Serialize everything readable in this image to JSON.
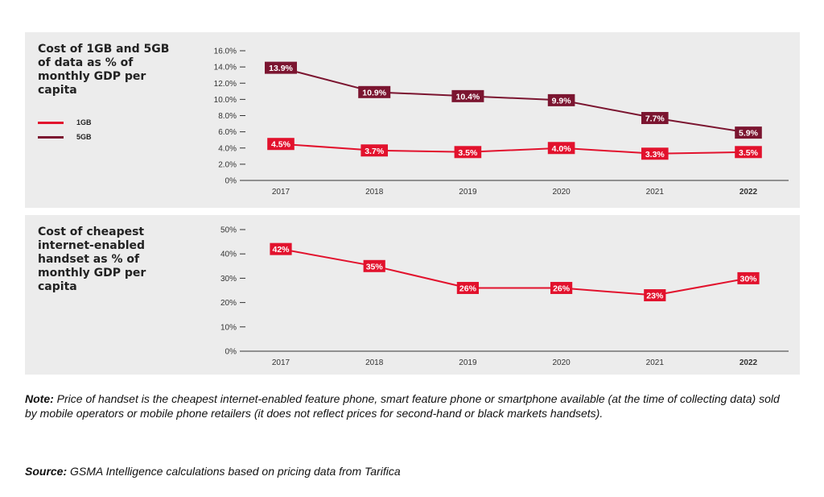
{
  "colors": {
    "panel_bg": "#ececec",
    "line_1gb": "#e2122d",
    "line_5gb": "#7b1530",
    "axis": "#333333",
    "label_text": "#ffffff"
  },
  "chart_data": [
    {
      "type": "line",
      "title": "Cost of 1GB and 5GB of data as % of monthly GDP per capita",
      "categories": [
        "2017",
        "2018",
        "2019",
        "2020",
        "2021",
        "2022"
      ],
      "emphasized_category": "2022",
      "series": [
        {
          "name": "1GB",
          "color": "#e2122d",
          "values": [
            4.5,
            3.7,
            3.5,
            4.0,
            3.3,
            3.5
          ],
          "labels": [
            "4.5%",
            "3.7%",
            "3.5%",
            "4.0%",
            "3.3%",
            "3.5%"
          ]
        },
        {
          "name": "5GB",
          "color": "#7b1530",
          "values": [
            13.9,
            10.9,
            10.4,
            9.9,
            7.7,
            5.9
          ],
          "labels": [
            "13.9%",
            "10.9%",
            "10.4%",
            "9.9%",
            "7.7%",
            "5.9%"
          ]
        }
      ],
      "yticks": [
        "16.0%",
        "14.0%",
        "12.0%",
        "10.0%",
        "8.0%",
        "6.0%",
        "4.0%",
        "2.0%",
        "0%"
      ],
      "ylim": [
        0,
        16
      ],
      "grid": false,
      "legend": "left"
    },
    {
      "type": "line",
      "title": "Cost of cheapest internet-enabled handset as % of monthly GDP per capita",
      "categories": [
        "2017",
        "2018",
        "2019",
        "2020",
        "2021",
        "2022"
      ],
      "emphasized_category": "2022",
      "series": [
        {
          "color": "#e2122d",
          "values": [
            42,
            35,
            26,
            26,
            23,
            30
          ],
          "labels": [
            "42%",
            "35%",
            "26%",
            "26%",
            "23%",
            "30%"
          ]
        }
      ],
      "yticks": [
        "50%",
        "40%",
        "30%",
        "20%",
        "10%",
        "0%"
      ],
      "ylim": [
        0,
        50
      ],
      "grid": false,
      "legend": "none"
    }
  ],
  "note": {
    "label": "Note:",
    "text": " Price of handset is the cheapest internet-enabled feature phone, smart feature phone or smartphone available (at the time of collecting data) sold by mobile operators or mobile phone retailers (it does not reflect prices for second-hand or black markets handsets)."
  },
  "source": {
    "label": "Source:",
    "text": " GSMA Intelligence calculations based on pricing data from Tarifica"
  }
}
